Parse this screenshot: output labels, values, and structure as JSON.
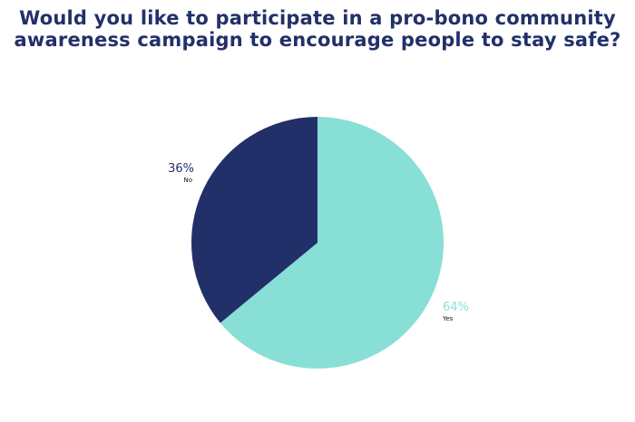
{
  "title_lines": [
    "Would you like to participate in a pro-bono community",
    "awareness campaign to encourage people to stay safe?"
  ],
  "chart_data": {
    "type": "pie",
    "title": "Would you like to participate in a pro-bono community awareness campaign to encourage people to stay safe?",
    "slices": [
      {
        "label": "Yes",
        "value": 64,
        "display": "64%",
        "color": "#88dfd5"
      },
      {
        "label": "No",
        "value": 36,
        "display": "36%",
        "color": "#22306a"
      }
    ],
    "start_angle_deg": 0,
    "direction": "clockwise",
    "legend": "none"
  }
}
